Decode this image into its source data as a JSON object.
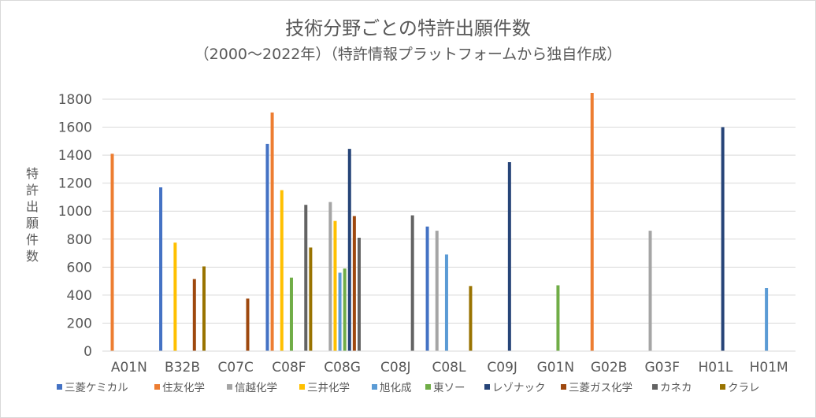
{
  "chart_data": {
    "type": "bar",
    "title": "技術分野ごとの特許出願件数",
    "subtitle": "（2000～2022年）（特許情報プラットフォームから独自作成）",
    "ylabel": "特許出願件数",
    "xlabel": "",
    "ylim": [
      0,
      1800
    ],
    "yticks": [
      0,
      200,
      400,
      600,
      800,
      1000,
      1200,
      1400,
      1600,
      1800
    ],
    "grid": true,
    "legend_position": "bottom",
    "categories": [
      "A01N",
      "B32B",
      "C07C",
      "C08F",
      "C08G",
      "C08J",
      "C08L",
      "C09J",
      "G01N",
      "G02B",
      "G03F",
      "H01L",
      "H01M"
    ],
    "series": [
      {
        "name": "三菱ケミカル",
        "color": "#4472c4",
        "values": [
          null,
          1170,
          null,
          1480,
          null,
          null,
          890,
          null,
          null,
          null,
          null,
          null,
          null
        ]
      },
      {
        "name": "住友化学",
        "color": "#ed7d31",
        "values": [
          1410,
          null,
          null,
          1705,
          null,
          null,
          null,
          null,
          null,
          1845,
          null,
          null,
          null
        ]
      },
      {
        "name": "信越化学",
        "color": "#a5a5a5",
        "values": [
          null,
          null,
          null,
          null,
          1065,
          null,
          860,
          null,
          null,
          null,
          860,
          null,
          null
        ]
      },
      {
        "name": "三井化学",
        "color": "#ffc000",
        "values": [
          null,
          775,
          null,
          1150,
          930,
          null,
          null,
          null,
          null,
          null,
          null,
          null,
          null
        ]
      },
      {
        "name": "旭化成",
        "color": "#5b9bd5",
        "values": [
          null,
          null,
          null,
          null,
          560,
          null,
          690,
          null,
          null,
          null,
          null,
          null,
          450
        ]
      },
      {
        "name": "東ソー",
        "color": "#70ad47",
        "values": [
          null,
          null,
          null,
          525,
          590,
          null,
          null,
          null,
          470,
          null,
          null,
          null,
          null
        ]
      },
      {
        "name": "レゾナック",
        "color": "#264478",
        "values": [
          null,
          null,
          null,
          null,
          1445,
          null,
          null,
          1350,
          null,
          null,
          null,
          1600,
          null
        ]
      },
      {
        "name": "三菱ガス化学",
        "color": "#9e480e",
        "values": [
          null,
          515,
          375,
          null,
          965,
          null,
          null,
          null,
          null,
          null,
          null,
          null,
          null
        ]
      },
      {
        "name": "カネカ",
        "color": "#636363",
        "values": [
          null,
          null,
          null,
          1045,
          810,
          970,
          null,
          null,
          null,
          null,
          null,
          null,
          null
        ]
      },
      {
        "name": "クラレ",
        "color": "#997300",
        "values": [
          null,
          605,
          null,
          740,
          null,
          null,
          465,
          null,
          null,
          null,
          null,
          null,
          null
        ]
      }
    ]
  }
}
